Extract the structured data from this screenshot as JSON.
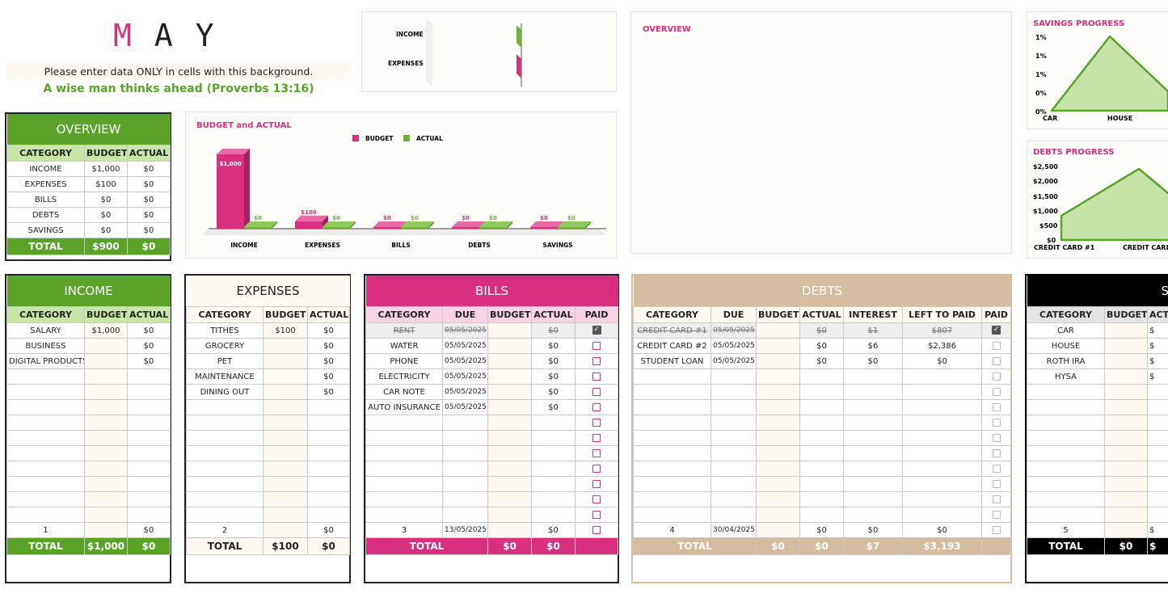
{
  "month_letters": [
    "M",
    "A",
    "Y"
  ],
  "instruction": "Please enter data ONLY in cells with this background.",
  "quote": "A wise man thinks ahead (Proverbs 13:16)",
  "colors": {
    "pink": "#d8307e",
    "green": "#5aa328",
    "tan": "#d3bca0",
    "black": "#000000"
  },
  "mini_bar": {
    "labels": [
      "INCOME",
      "EXPENSES"
    ]
  },
  "overview_panel_title": "OVERVIEW",
  "budget_chart": {
    "chart_data": {
      "type": "bar",
      "title": "BUDGET and ACTUAL",
      "categories": [
        "INCOME",
        "EXPENSES",
        "BILLS",
        "DEBTS",
        "SAVINGS"
      ],
      "series": [
        {
          "name": "BUDGET",
          "values": [
            1000,
            100,
            0,
            0,
            0
          ],
          "labels": [
            "$1,000",
            "$100",
            "$0",
            "$0",
            "$0"
          ]
        },
        {
          "name": "ACTUAL",
          "values": [
            0,
            0,
            0,
            0,
            0
          ],
          "labels": [
            "$0",
            "$0",
            "$0",
            "$0",
            "$0"
          ]
        }
      ],
      "ylim": [
        0,
        1000
      ],
      "legend": "top"
    }
  },
  "savings_chart": {
    "chart_data": {
      "type": "area",
      "title": "SAVINGS PROGRESS",
      "categories": [
        "CAR",
        "HOUSE"
      ],
      "y_ticks": [
        "1%",
        "1%",
        "1%",
        "0%",
        "0%"
      ]
    }
  },
  "debts_chart": {
    "chart_data": {
      "type": "area",
      "title": "DEBTS PROGRESS",
      "categories": [
        "CREDIT CARD #1",
        "CREDIT CARD"
      ],
      "y_ticks": [
        "$2,500",
        "$2,000",
        "$1,500",
        "$1,000",
        "$500",
        "$0"
      ],
      "values": [
        807,
        2386
      ],
      "ylim": [
        0,
        2500
      ]
    }
  },
  "overview": {
    "title": "OVERVIEW",
    "headers": [
      "CATEGORY",
      "BUDGET",
      "ACTUAL"
    ],
    "rows": [
      [
        "INCOME",
        "$1,000",
        "$0"
      ],
      [
        "EXPENSES",
        "$100",
        "$0"
      ],
      [
        "BILLS",
        "$0",
        "$0"
      ],
      [
        "DEBTS",
        "$0",
        "$0"
      ],
      [
        "SAVINGS",
        "$0",
        "$0"
      ]
    ],
    "total": [
      "TOTAL",
      "$900",
      "$0"
    ]
  },
  "income": {
    "title": "INCOME",
    "headers": [
      "CATEGORY",
      "BUDGET",
      "ACTUAL"
    ],
    "rows": [
      [
        "SALARY",
        "$1,000",
        "$0"
      ],
      [
        "BUSINESS",
        "",
        "$0"
      ],
      [
        "DIGITAL PRODUCTS",
        "",
        "$0"
      ]
    ],
    "count": [
      "1",
      "",
      "$0"
    ],
    "total": [
      "TOTAL",
      "$1,000",
      "$0"
    ]
  },
  "expenses": {
    "title": "EXPENSES",
    "headers": [
      "CATEGORY",
      "BUDGET",
      "ACTUAL"
    ],
    "rows": [
      [
        "TITHES",
        "$100",
        "$0"
      ],
      [
        "GROCERY",
        "",
        "$0"
      ],
      [
        "PET",
        "",
        "$0"
      ],
      [
        "MAINTENANCE",
        "",
        "$0"
      ],
      [
        "DINING OUT",
        "",
        "$0"
      ]
    ],
    "count": [
      "2",
      "",
      "$0"
    ],
    "total": [
      "TOTAL",
      "$100",
      "$0"
    ]
  },
  "bills": {
    "title": "BILLS",
    "headers": [
      "CATEGORY",
      "DUE",
      "BUDGET",
      "ACTUAL",
      "PAID"
    ],
    "rows": [
      [
        "RENT",
        "05/05/2025",
        "",
        "$0",
        "x"
      ],
      [
        "WATER",
        "05/05/2025",
        "",
        "$0",
        ""
      ],
      [
        "PHONE",
        "05/05/2025",
        "",
        "$0",
        ""
      ],
      [
        "ELECTRICITY",
        "05/05/2025",
        "",
        "$0",
        ""
      ],
      [
        "CAR NOTE",
        "05/05/2025",
        "",
        "$0",
        ""
      ],
      [
        "AUTO INSURANCE",
        "05/05/2025",
        "",
        "$0",
        ""
      ]
    ],
    "count": [
      "3",
      "13/05/2025",
      "",
      "$0",
      ""
    ],
    "total": [
      "TOTAL",
      "",
      "$0",
      "$0",
      ""
    ]
  },
  "debts": {
    "title": "DEBTS",
    "headers": [
      "CATEGORY",
      "DUE",
      "BUDGET",
      "ACTUAL",
      "INTEREST",
      "LEFT TO PAID",
      "PAID"
    ],
    "rows": [
      [
        "CREDIT CARD #1",
        "05/05/2025",
        "",
        "$0",
        "$1",
        "$807",
        "x"
      ],
      [
        "CREDIT CARD #2",
        "05/05/2025",
        "",
        "$0",
        "$6",
        "$2,386",
        ""
      ],
      [
        "STUDENT LOAN",
        "05/05/2025",
        "",
        "$0",
        "$0",
        "$0",
        ""
      ]
    ],
    "count": [
      "4",
      "30/04/2025",
      "",
      "$0",
      "$0",
      "$0",
      ""
    ],
    "total": [
      "TOTAL",
      "",
      "$0",
      "$0",
      "$7",
      "$3,193",
      ""
    ]
  },
  "savings": {
    "title": "SA",
    "headers": [
      "CATEGORY",
      "BUDGET",
      "ACT"
    ],
    "rows": [
      [
        "CAR",
        "",
        "$"
      ],
      [
        "HOUSE",
        "",
        "$"
      ],
      [
        "ROTH IRA",
        "",
        "$"
      ],
      [
        "HYSA",
        "",
        "$"
      ]
    ],
    "count": [
      "5",
      "",
      "$"
    ],
    "total": [
      "TOTAL",
      "$0",
      "$"
    ]
  }
}
